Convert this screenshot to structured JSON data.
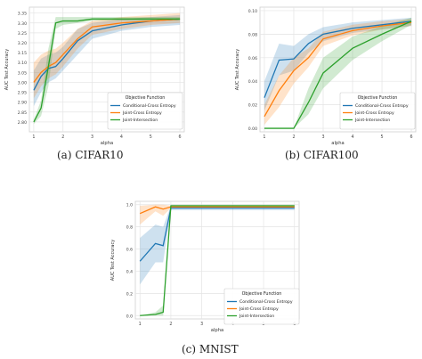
{
  "colors": {
    "cce": "#1f77b4",
    "jce": "#ff7f0e",
    "ji": "#2ca02c"
  },
  "chart_data": [
    {
      "type": "line",
      "caption": "(a) CIFAR10",
      "xlabel": "alpha",
      "ylabel": "AUC Test Accuracy",
      "xlim": [
        0.85,
        6.15
      ],
      "ylim": [
        2.75,
        3.38
      ],
      "xticks": [
        1,
        2,
        3,
        4,
        5,
        6
      ],
      "yticks": [
        2.8,
        2.85,
        2.9,
        2.95,
        3.0,
        3.05,
        3.1,
        3.15,
        3.2,
        3.25,
        3.3,
        3.35
      ],
      "grid": true,
      "legend_title": "Objective Function",
      "legend_position": "lower right",
      "x": [
        1,
        1.25,
        1.5,
        1.75,
        2,
        2.5,
        3,
        4,
        5,
        6
      ],
      "series": [
        {
          "name": "Conditional-Cross Entropy",
          "color_key": "cce",
          "values": [
            2.96,
            3.03,
            3.07,
            3.08,
            3.12,
            3.21,
            3.26,
            3.29,
            3.31,
            3.32
          ],
          "lower": [
            2.88,
            2.95,
            3.0,
            3.02,
            3.06,
            3.14,
            3.22,
            3.26,
            3.28,
            3.29
          ],
          "upper": [
            3.06,
            3.12,
            3.14,
            3.15,
            3.18,
            3.27,
            3.3,
            3.32,
            3.33,
            3.34
          ]
        },
        {
          "name": "Joint-Cross Entropy",
          "color_key": "jce",
          "values": [
            3.0,
            3.05,
            3.08,
            3.1,
            3.14,
            3.22,
            3.28,
            3.3,
            3.31,
            3.32
          ],
          "lower": [
            2.92,
            2.98,
            3.02,
            3.04,
            3.08,
            3.17,
            3.24,
            3.27,
            3.29,
            3.3
          ],
          "upper": [
            3.1,
            3.14,
            3.16,
            3.17,
            3.2,
            3.27,
            3.31,
            3.33,
            3.34,
            3.35
          ]
        },
        {
          "name": "Joint-Intersection",
          "color_key": "ji",
          "values": [
            2.8,
            2.87,
            3.08,
            3.3,
            3.31,
            3.31,
            3.32,
            3.32,
            3.32,
            3.32
          ],
          "lower": [
            2.79,
            2.83,
            2.98,
            3.27,
            3.29,
            3.3,
            3.31,
            3.31,
            3.31,
            3.31
          ],
          "upper": [
            2.81,
            2.91,
            3.17,
            3.33,
            3.33,
            3.33,
            3.33,
            3.33,
            3.33,
            3.33
          ]
        }
      ]
    },
    {
      "type": "line",
      "caption": "(b) CIFAR100",
      "xlabel": "alpha",
      "ylabel": "AUC Test Accuracy",
      "xlim": [
        0.85,
        6.15
      ],
      "ylim": [
        -0.003,
        0.103
      ],
      "xticks": [
        1,
        2,
        3,
        4,
        5,
        6
      ],
      "yticks": [
        0.0,
        0.02,
        0.04,
        0.06,
        0.08,
        0.1
      ],
      "grid": true,
      "legend_title": "Objective Function",
      "legend_position": "lower right",
      "x": [
        1,
        1.5,
        2,
        2.5,
        3,
        4,
        5,
        6
      ],
      "series": [
        {
          "name": "Conditional-Cross Entropy",
          "color_key": "cce",
          "values": [
            0.026,
            0.058,
            0.059,
            0.072,
            0.08,
            0.085,
            0.088,
            0.091
          ],
          "lower": [
            0.015,
            0.045,
            0.049,
            0.064,
            0.074,
            0.081,
            0.084,
            0.087
          ],
          "upper": [
            0.04,
            0.072,
            0.07,
            0.08,
            0.086,
            0.09,
            0.092,
            0.094
          ]
        },
        {
          "name": "Joint-Cross Entropy",
          "color_key": "jce",
          "values": [
            0.01,
            0.032,
            0.049,
            0.06,
            0.076,
            0.083,
            0.087,
            0.09
          ],
          "lower": [
            0.003,
            0.018,
            0.038,
            0.052,
            0.07,
            0.079,
            0.084,
            0.087
          ],
          "upper": [
            0.02,
            0.045,
            0.06,
            0.068,
            0.082,
            0.088,
            0.091,
            0.093
          ]
        },
        {
          "name": "Joint-Intersection",
          "color_key": "ji",
          "values": [
            0.0,
            0.0,
            0.0,
            0.022,
            0.047,
            0.068,
            0.08,
            0.091
          ],
          "lower": [
            0.0,
            0.0,
            0.0,
            0.012,
            0.034,
            0.058,
            0.074,
            0.088
          ],
          "upper": [
            0.0,
            0.0,
            0.0,
            0.034,
            0.06,
            0.078,
            0.087,
            0.094
          ]
        }
      ]
    },
    {
      "type": "line",
      "caption": "(c) MNIST",
      "xlabel": "alpha",
      "ylabel": "AUC Test Accuracy",
      "xlim": [
        0.85,
        6.15
      ],
      "ylim": [
        -0.03,
        1.03
      ],
      "xticks": [
        1,
        2,
        3,
        4,
        5,
        6
      ],
      "yticks": [
        0.0,
        0.2,
        0.4,
        0.6,
        0.8,
        1.0
      ],
      "grid": true,
      "legend_title": "Objective Function",
      "legend_position": "lower right",
      "x": [
        1,
        1.5,
        1.75,
        2,
        3,
        4,
        5,
        6
      ],
      "series": [
        {
          "name": "Conditional-Cross Entropy",
          "color_key": "cce",
          "values": [
            0.49,
            0.65,
            0.63,
            0.97,
            0.97,
            0.97,
            0.97,
            0.97
          ],
          "lower": [
            0.28,
            0.48,
            0.48,
            0.95,
            0.95,
            0.95,
            0.95,
            0.95
          ],
          "upper": [
            0.7,
            0.82,
            0.8,
            0.99,
            0.99,
            0.99,
            0.99,
            0.99
          ]
        },
        {
          "name": "Joint-Cross Entropy",
          "color_key": "jce",
          "values": [
            0.92,
            0.98,
            0.96,
            0.98,
            0.98,
            0.98,
            0.98,
            0.98
          ],
          "lower": [
            0.82,
            0.94,
            0.9,
            0.97,
            0.97,
            0.97,
            0.97,
            0.97
          ],
          "upper": [
            0.99,
            1.0,
            1.0,
            0.99,
            0.99,
            0.99,
            0.99,
            0.99
          ]
        },
        {
          "name": "Joint-Intersection",
          "color_key": "ji",
          "values": [
            0.0,
            0.01,
            0.03,
            0.99,
            0.99,
            0.99,
            0.99,
            0.99
          ],
          "lower": [
            0.0,
            0.0,
            0.0,
            0.98,
            0.98,
            0.98,
            0.98,
            0.98
          ],
          "upper": [
            0.0,
            0.03,
            0.09,
            1.0,
            1.0,
            1.0,
            1.0,
            1.0
          ]
        }
      ]
    }
  ]
}
